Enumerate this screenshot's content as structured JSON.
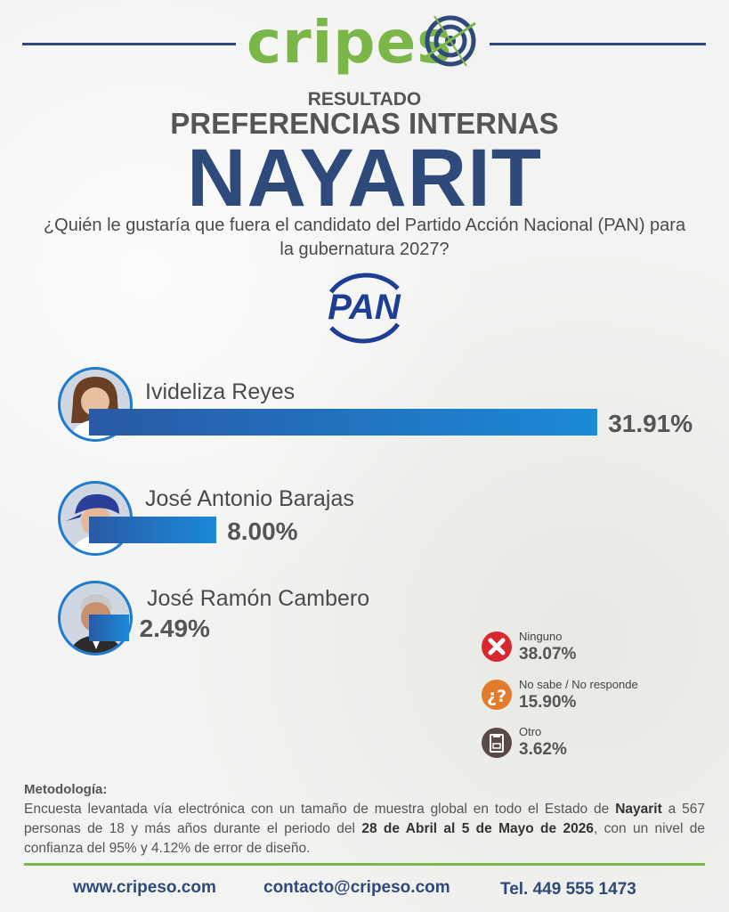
{
  "brand": {
    "logo_part1": "cripes",
    "logo_part2": "o"
  },
  "header": {
    "line1": "RESULTADO",
    "line2": "PREFERENCIAS INTERNAS",
    "state": "NAYARIT",
    "question": "¿Quién le gustaría que fuera el candidato del Partido Acción Nacional (PAN) para la gubernatura 2027?"
  },
  "party": {
    "logo_text": "PAN",
    "color": "#1c3f94"
  },
  "chart_data": {
    "type": "bar",
    "orientation": "horizontal",
    "categories": [
      "Ivideliza Reyes",
      "José Antonio Barajas",
      "José Ramón Cambero"
    ],
    "values": [
      31.91,
      8.0,
      2.49
    ],
    "value_labels": [
      "31.91%",
      "8.00%",
      "2.49%"
    ],
    "bar_color": "#1a8ad9",
    "other_responses": [
      {
        "label": "Ninguno",
        "value": 38.07,
        "value_label": "38.07%",
        "icon": "x-icon",
        "color": "#d7282f"
      },
      {
        "label": "No sabe / No responde",
        "value": 15.9,
        "value_label": "15.90%",
        "icon": "question-icon",
        "color": "#e37b2c"
      },
      {
        "label": "Otro",
        "value": 3.62,
        "value_label": "3.62%",
        "icon": "ballot-box-icon",
        "color": "#5a4a46"
      }
    ]
  },
  "methodology": {
    "title": "Metodología:",
    "p1": "Encuesta levantada vía electrónica con un tamaño de muestra global en todo el Estado de ",
    "b1": "Nayarit",
    "p2": " a 567 personas de 18 y más años durante el periodo del ",
    "b2": "28 de Abril al 5 de Mayo de 2026",
    "p3": ", con un nivel de confianza del 95% y 4.12% de error de diseño."
  },
  "footer": {
    "website": "www.cripeso.com",
    "email": "contacto@cripeso.com",
    "phone": "Tel. 449 555 1473"
  },
  "colors": {
    "navy": "#2d4a7a",
    "green": "#7ab648",
    "blue": "#1a8ad9"
  }
}
